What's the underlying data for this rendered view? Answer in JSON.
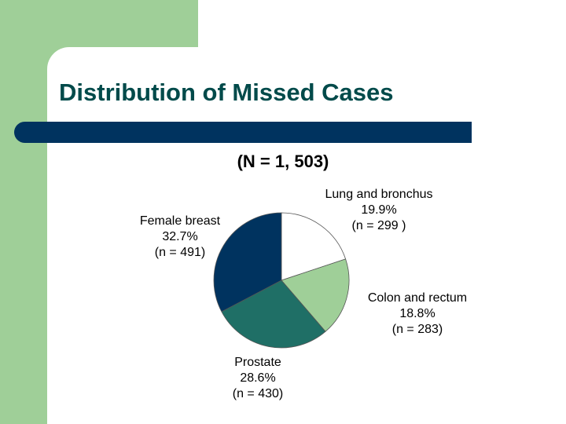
{
  "title": "Distribution of Missed Cases",
  "subtitle": "(N = 1, 503)",
  "chart_data": {
    "type": "pie",
    "title": "",
    "slices": [
      {
        "name": "Lung and bronchus",
        "value": 19.9,
        "pct_label": "19.9%",
        "n_label": "(n = 299 )",
        "color": "#ffffff"
      },
      {
        "name": "Colon and rectum",
        "value": 18.8,
        "pct_label": "18.8%",
        "n_label": "(n = 283)",
        "color": "#9fcf98"
      },
      {
        "name": "Prostate",
        "value": 28.6,
        "pct_label": "28.6%",
        "n_label": "(n = 430)",
        "color": "#1f6f66"
      },
      {
        "name": "Female breast",
        "value": 32.7,
        "pct_label": "32.7%",
        "n_label": "(n = 491)",
        "color": "#00335f"
      }
    ],
    "start_angle_deg": 0,
    "direction": "clockwise"
  },
  "colors": {
    "background_accent": "#9fcf98",
    "title_text": "#004a4a",
    "title_bar": "#00335f"
  }
}
